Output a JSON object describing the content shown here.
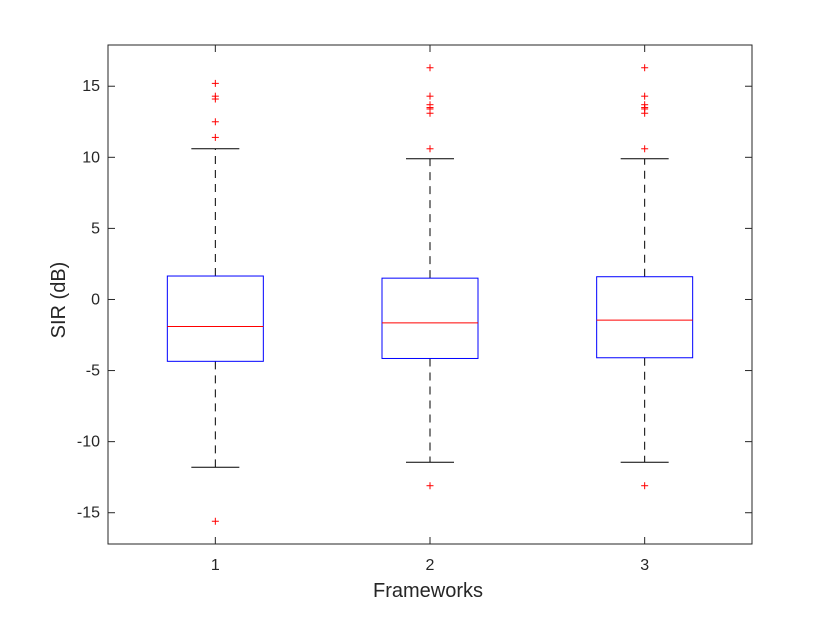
{
  "chart_data": {
    "type": "boxplot",
    "xlabel": "Frameworks",
    "ylabel": "SIR (dB)",
    "ylim": [
      -17.2,
      17.9
    ],
    "yticks": [
      -15,
      -10,
      -5,
      0,
      5,
      10,
      15
    ],
    "categories": [
      "1",
      "2",
      "3"
    ],
    "grid": false,
    "colors": {
      "box": "#0000ff",
      "median": "#ff0000",
      "whisker": "#000000",
      "outlier": "#ff0000",
      "axis": "#262626"
    },
    "boxes": [
      {
        "category": "1",
        "q1": -4.35,
        "median": -1.9,
        "q3": 1.65,
        "whisker_low": -11.8,
        "whisker_high": 10.6,
        "outliers": [
          15.2,
          14.3,
          14.1,
          12.5,
          11.4,
          -15.6
        ]
      },
      {
        "category": "2",
        "q1": -4.15,
        "median": -1.65,
        "q3": 1.5,
        "whisker_low": -11.45,
        "whisker_high": 9.9,
        "outliers": [
          16.3,
          14.3,
          13.7,
          13.5,
          13.4,
          13.1,
          10.6,
          -13.1
        ]
      },
      {
        "category": "3",
        "q1": -4.1,
        "median": -1.45,
        "q3": 1.6,
        "whisker_low": -11.45,
        "whisker_high": 9.9,
        "outliers": [
          16.3,
          14.3,
          13.7,
          13.5,
          13.4,
          13.1,
          10.6,
          -13.1
        ]
      }
    ]
  }
}
